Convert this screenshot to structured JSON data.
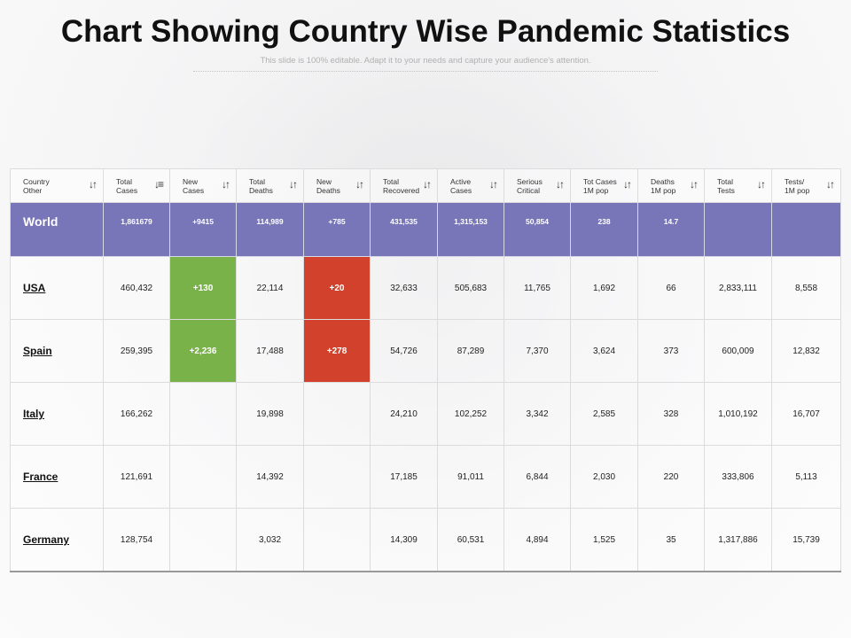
{
  "title": "Chart Showing Country Wise Pandemic Statistics",
  "subtitle": "This slide is 100% editable. Adapt it to your needs and capture your audience's attention.",
  "colors": {
    "header_row": "#7876b8",
    "increase_cases": "#7ab24a",
    "increase_deaths": "#d2412b"
  },
  "chart_data": {
    "type": "table",
    "title": "Chart Showing Country Wise Pandemic Statistics",
    "columns": [
      {
        "line1": "Country",
        "line2": "Other",
        "icon": "sort-icon"
      },
      {
        "line1": "Total",
        "line2": "Cases",
        "icon": "sort-descending-icon"
      },
      {
        "line1": "New",
        "line2": "Cases",
        "icon": "sort-icon"
      },
      {
        "line1": "Total",
        "line2": "Deaths",
        "icon": "sort-icon"
      },
      {
        "line1": "New",
        "line2": "Deaths",
        "icon": "sort-icon"
      },
      {
        "line1": "Total",
        "line2": "Recovered",
        "icon": "sort-icon"
      },
      {
        "line1": "Active",
        "line2": "Cases",
        "icon": "sort-icon"
      },
      {
        "line1": "Serious",
        "line2": "Critical",
        "icon": "sort-icon"
      },
      {
        "line1": "Tot Cases",
        "line2": "1M pop",
        "icon": "sort-icon"
      },
      {
        "line1": "Deaths",
        "line2": "1M pop",
        "icon": "sort-icon"
      },
      {
        "line1": "Total",
        "line2": "Tests",
        "icon": "sort-icon"
      },
      {
        "line1": "Tests/",
        "line2": "1M pop",
        "icon": "sort-icon"
      }
    ],
    "world": [
      "World",
      "1,861679",
      "+9415",
      "114,989",
      "+785",
      "431,535",
      "1,315,153",
      "50,854",
      "238",
      "14.7",
      "",
      ""
    ],
    "rows": [
      [
        "USA",
        "460,432",
        "+130",
        "22,114",
        "+20",
        "32,633",
        "505,683",
        "11,765",
        "1,692",
        "66",
        "2,833,111",
        "8,558"
      ],
      [
        "Spain",
        "259,395",
        "+2,236",
        "17,488",
        "+278",
        "54,726",
        "87,289",
        "7,370",
        "3,624",
        "373",
        "600,009",
        "12,832"
      ],
      [
        "Italy",
        "166,262",
        "",
        "19,898",
        "",
        "24,210",
        "102,252",
        "3,342",
        "2,585",
        "328",
        "1,010,192",
        "16,707"
      ],
      [
        "France",
        "121,691",
        "",
        "14,392",
        "",
        "17,185",
        "91,011",
        "6,844",
        "2,030",
        "220",
        "333,806",
        "5,113"
      ],
      [
        "Germany",
        "128,754",
        "",
        "3,032",
        "",
        "14,309",
        "60,531",
        "4,894",
        "1,525",
        "35",
        "1,317,886",
        "15,739"
      ]
    ]
  }
}
